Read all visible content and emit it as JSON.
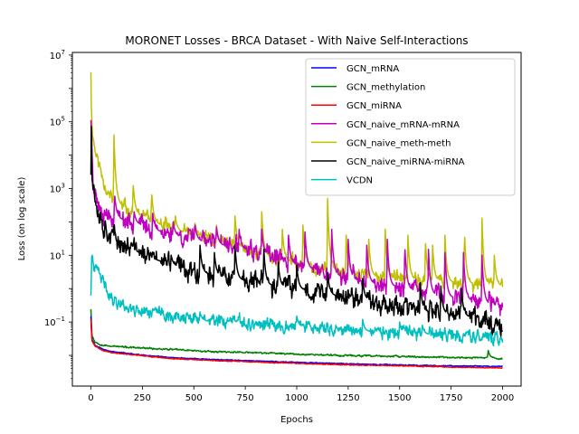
{
  "chart_data": {
    "type": "line",
    "title": "MORONET Losses - BRCA Dataset - With Naive Self-Interactions",
    "xlabel": "Epochs",
    "ylabel": "Loss (on log scale)",
    "yscale": "log",
    "xlim": [
      -90,
      2090
    ],
    "ylim": [
      0.0012,
      12000000
    ],
    "x_ticks": [
      0,
      250,
      500,
      750,
      1000,
      1250,
      1500,
      1750,
      2000
    ],
    "x_tick_labels": [
      "0",
      "250",
      "500",
      "750",
      "1000",
      "1250",
      "1500",
      "1750",
      "2000"
    ],
    "y_ticks": [
      0.1,
      10,
      1000,
      100000,
      10000000
    ],
    "y_tick_bases": [
      "10",
      "10",
      "10",
      "10",
      "10"
    ],
    "y_tick_exponents": [
      "−1",
      "1",
      "3",
      "5",
      "7"
    ],
    "grid": false,
    "legend_position": "upper right",
    "series": [
      {
        "name": "GCN_naive_meth-meth",
        "color": "#bfbf00",
        "anchors": [
          [
            0,
            4000000
          ],
          [
            3,
            150000
          ],
          [
            10,
            40000
          ],
          [
            20,
            15000
          ],
          [
            40,
            5000
          ],
          [
            60,
            2000
          ],
          [
            80,
            800
          ],
          [
            100,
            500
          ],
          [
            150,
            300
          ],
          [
            200,
            200
          ],
          [
            300,
            100
          ],
          [
            400,
            60
          ],
          [
            500,
            40
          ],
          [
            600,
            25
          ],
          [
            700,
            20
          ],
          [
            800,
            12
          ],
          [
            900,
            8
          ],
          [
            1000,
            6
          ],
          [
            1100,
            4.5
          ],
          [
            1200,
            3.5
          ],
          [
            1300,
            2.8
          ],
          [
            1400,
            2.2
          ],
          [
            1500,
            2
          ],
          [
            1600,
            1.8
          ],
          [
            1700,
            1.6
          ],
          [
            1800,
            1.5
          ],
          [
            1900,
            1.3
          ],
          [
            2000,
            1.2
          ]
        ],
        "spikes": [
          [
            25,
            1500
          ],
          [
            112,
            40000
          ],
          [
            205,
            1500
          ],
          [
            295,
            800
          ],
          [
            410,
            150
          ],
          [
            505,
            100
          ],
          [
            610,
            80
          ],
          [
            700,
            150
          ],
          [
            830,
            200
          ],
          [
            930,
            60
          ],
          [
            1030,
            80
          ],
          [
            1150,
            500
          ],
          [
            1240,
            40
          ],
          [
            1350,
            30
          ],
          [
            1430,
            60
          ],
          [
            1540,
            40
          ],
          [
            1625,
            30
          ],
          [
            1660,
            20
          ],
          [
            1720,
            40
          ],
          [
            1815,
            50
          ],
          [
            1900,
            130
          ],
          [
            1960,
            10
          ]
        ],
        "noise": 0.35,
        "seed": 11
      },
      {
        "name": "GCN_naive_mRNA-mRNA",
        "color": "#bf00bf",
        "anchors": [
          [
            0,
            150000
          ],
          [
            5,
            20000
          ],
          [
            10,
            2000
          ],
          [
            30,
            400
          ],
          [
            60,
            200
          ],
          [
            100,
            150
          ],
          [
            150,
            120
          ],
          [
            250,
            80
          ],
          [
            300,
            60
          ],
          [
            400,
            40
          ],
          [
            500,
            30
          ],
          [
            600,
            22
          ],
          [
            700,
            18
          ],
          [
            800,
            12
          ],
          [
            900,
            8
          ],
          [
            1000,
            5
          ],
          [
            1100,
            3.5
          ],
          [
            1200,
            2.5
          ],
          [
            1300,
            1.8
          ],
          [
            1400,
            1.3
          ],
          [
            1500,
            1.1
          ],
          [
            1600,
            0.8
          ],
          [
            1700,
            0.6
          ],
          [
            1800,
            0.5
          ],
          [
            1900,
            0.38
          ],
          [
            2000,
            0.28
          ]
        ],
        "spikes": [
          [
            115,
            700
          ],
          [
            210,
            200
          ],
          [
            300,
            180
          ],
          [
            400,
            100
          ],
          [
            505,
            90
          ],
          [
            610,
            70
          ],
          [
            720,
            60
          ],
          [
            830,
            60
          ],
          [
            960,
            40
          ],
          [
            1040,
            50
          ],
          [
            1170,
            60
          ],
          [
            1250,
            30
          ],
          [
            1340,
            20
          ],
          [
            1440,
            30
          ],
          [
            1525,
            20
          ],
          [
            1640,
            15
          ],
          [
            1720,
            12
          ],
          [
            1810,
            12
          ],
          [
            1900,
            10
          ]
        ],
        "noise": 0.45,
        "seed": 23
      },
      {
        "name": "GCN_naive_miRNA-miRNA",
        "color": "#000000",
        "anchors": [
          [
            0,
            3000
          ],
          [
            2,
            150000
          ],
          [
            5,
            4000
          ],
          [
            10,
            1500
          ],
          [
            30,
            300
          ],
          [
            60,
            80
          ],
          [
            100,
            40
          ],
          [
            150,
            22
          ],
          [
            200,
            15
          ],
          [
            300,
            8
          ],
          [
            400,
            5
          ],
          [
            500,
            3.5
          ],
          [
            600,
            2.5
          ],
          [
            700,
            2
          ],
          [
            800,
            1.5
          ],
          [
            900,
            1.2
          ],
          [
            1000,
            1
          ],
          [
            1100,
            0.8
          ],
          [
            1200,
            0.6
          ],
          [
            1300,
            0.5
          ],
          [
            1400,
            0.4
          ],
          [
            1500,
            0.3
          ],
          [
            1600,
            0.22
          ],
          [
            1700,
            0.18
          ],
          [
            1800,
            0.16
          ],
          [
            1900,
            0.12
          ],
          [
            2000,
            0.08
          ]
        ],
        "spikes": [
          [
            195,
            25
          ],
          [
            300,
            8
          ],
          [
            390,
            10
          ],
          [
            530,
            20
          ],
          [
            600,
            12
          ],
          [
            700,
            20
          ],
          [
            840,
            15
          ],
          [
            910,
            6
          ],
          [
            1000,
            5
          ],
          [
            1150,
            3
          ],
          [
            1320,
            2
          ],
          [
            1600,
            1.5
          ],
          [
            1700,
            1.2
          ],
          [
            1800,
            1
          ]
        ],
        "noise": 0.5,
        "seed": 37
      },
      {
        "name": "VCDN",
        "color": "#00bfbf",
        "anchors": [
          [
            0,
            0.6
          ],
          [
            5,
            15
          ],
          [
            15,
            3
          ],
          [
            30,
            4
          ],
          [
            50,
            2
          ],
          [
            80,
            1
          ],
          [
            100,
            0.5
          ],
          [
            150,
            0.35
          ],
          [
            200,
            0.25
          ],
          [
            300,
            0.2
          ],
          [
            400,
            0.15
          ],
          [
            500,
            0.12
          ],
          [
            600,
            0.1
          ],
          [
            700,
            0.095
          ],
          [
            800,
            0.085
          ],
          [
            900,
            0.08
          ],
          [
            1000,
            0.075
          ],
          [
            1100,
            0.065
          ],
          [
            1200,
            0.06
          ],
          [
            1300,
            0.055
          ],
          [
            1400,
            0.05
          ],
          [
            1500,
            0.045
          ],
          [
            1600,
            0.045
          ],
          [
            1700,
            0.04
          ],
          [
            1800,
            0.04
          ],
          [
            1900,
            0.035
          ],
          [
            2000,
            0.032
          ]
        ],
        "spikes": [
          [
            300,
            0.25
          ],
          [
            530,
            0.2
          ],
          [
            690,
            0.15
          ],
          [
            1000,
            0.15
          ],
          [
            1320,
            0.12
          ],
          [
            1500,
            0.1
          ],
          [
            1610,
            0.08
          ]
        ],
        "noise": 0.3,
        "seed": 41
      },
      {
        "name": "GCN_methylation",
        "color": "#008000",
        "anchors": [
          [
            0,
            0.25
          ],
          [
            5,
            0.04
          ],
          [
            20,
            0.025
          ],
          [
            60,
            0.02
          ],
          [
            100,
            0.019
          ],
          [
            200,
            0.017
          ],
          [
            400,
            0.015
          ],
          [
            600,
            0.013
          ],
          [
            800,
            0.012
          ],
          [
            1000,
            0.011
          ],
          [
            1200,
            0.01
          ],
          [
            1400,
            0.0095
          ],
          [
            1600,
            0.009
          ],
          [
            1800,
            0.0085
          ],
          [
            1900,
            0.0085
          ],
          [
            2000,
            0.008
          ]
        ],
        "spikes": [
          [
            1930,
            0.014
          ]
        ],
        "noise": 0.04,
        "seed": 53
      },
      {
        "name": "GCN_mRNA",
        "color": "#0000ff",
        "anchors": [
          [
            0,
            0.15
          ],
          [
            5,
            0.03
          ],
          [
            20,
            0.02
          ],
          [
            60,
            0.015
          ],
          [
            100,
            0.013
          ],
          [
            200,
            0.011
          ],
          [
            300,
            0.0095
          ],
          [
            400,
            0.0085
          ],
          [
            600,
            0.0075
          ],
          [
            800,
            0.0068
          ],
          [
            1000,
            0.0062
          ],
          [
            1200,
            0.0057
          ],
          [
            1400,
            0.0053
          ],
          [
            1600,
            0.005
          ],
          [
            1800,
            0.0048
          ],
          [
            2000,
            0.0047
          ]
        ],
        "spikes": [],
        "noise": 0.02,
        "seed": 61
      },
      {
        "name": "GCN_miRNA",
        "color": "#ff0000",
        "anchors": [
          [
            0,
            0.12
          ],
          [
            5,
            0.028
          ],
          [
            20,
            0.019
          ],
          [
            60,
            0.014
          ],
          [
            100,
            0.012
          ],
          [
            200,
            0.0105
          ],
          [
            300,
            0.009
          ],
          [
            400,
            0.008
          ],
          [
            600,
            0.007
          ],
          [
            800,
            0.0063
          ],
          [
            1000,
            0.0058
          ],
          [
            1200,
            0.0053
          ],
          [
            1400,
            0.005
          ],
          [
            1600,
            0.0047
          ],
          [
            1800,
            0.0044
          ],
          [
            2000,
            0.0042
          ]
        ],
        "spikes": [],
        "noise": 0.02,
        "seed": 67
      }
    ],
    "legend_order": [
      "GCN_mRNA",
      "GCN_methylation",
      "GCN_miRNA",
      "GCN_naive_mRNA-mRNA",
      "GCN_naive_meth-meth",
      "GCN_naive_miRNA-miRNA",
      "VCDN"
    ]
  }
}
